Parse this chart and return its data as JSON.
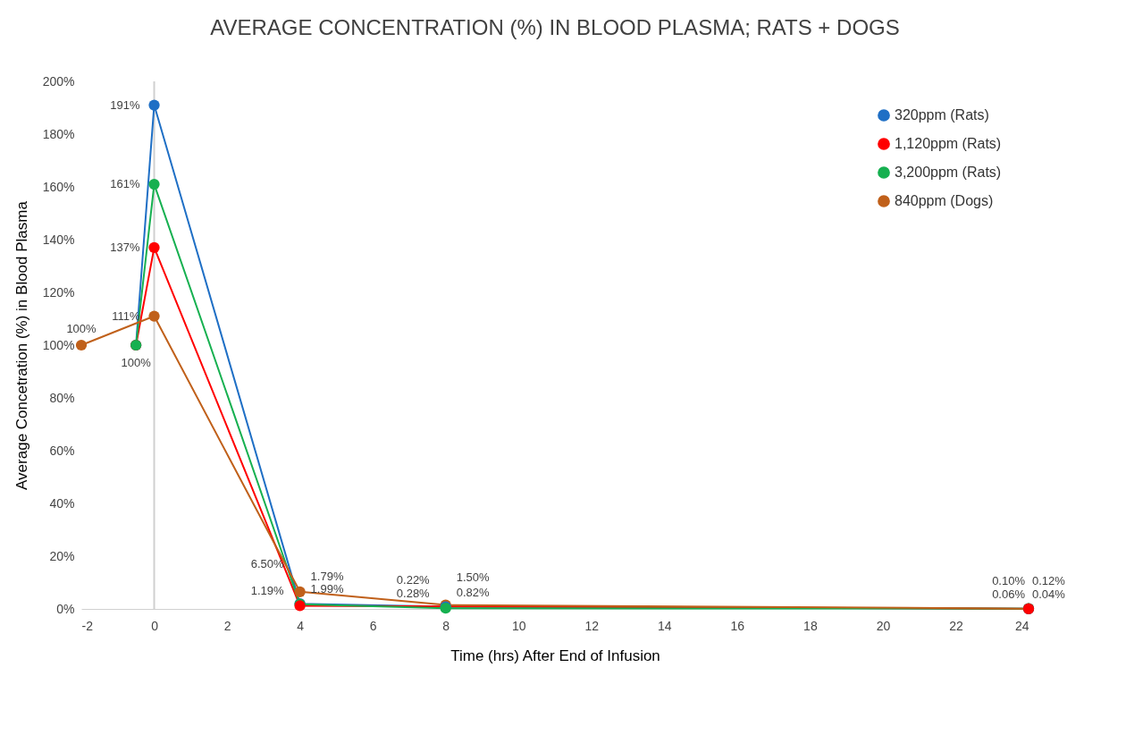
{
  "chart_data": {
    "type": "line",
    "title": "AVERAGE CONCENTRATION (%) IN BLOOD PLASMA; RATS + DOGS",
    "xlabel": "Time (hrs) After End of Infusion",
    "ylabel": "Average Concetration (%) in Blood Plasma",
    "xlim": [
      -2,
      24
    ],
    "xticks": [
      -2,
      0,
      2,
      4,
      6,
      8,
      10,
      12,
      14,
      16,
      18,
      20,
      22,
      24
    ],
    "ylim": [
      0,
      200
    ],
    "yticks": [
      {
        "value": 0,
        "label": "0%"
      },
      {
        "value": 20,
        "label": "20%"
      },
      {
        "value": 40,
        "label": "40%"
      },
      {
        "value": 60,
        "label": "60%"
      },
      {
        "value": 80,
        "label": "80%"
      },
      {
        "value": 100,
        "label": "100%"
      },
      {
        "value": 120,
        "label": "120%"
      },
      {
        "value": 140,
        "label": "140%"
      },
      {
        "value": 160,
        "label": "160%"
      },
      {
        "value": 180,
        "label": "180%"
      },
      {
        "value": 200,
        "label": "200%"
      }
    ],
    "grid": false,
    "legend": "top right",
    "marker": "circle",
    "line_style": "solid",
    "ref_lines": [
      {
        "axis": "x",
        "value": 0,
        "color": "#d0d0d0"
      }
    ],
    "annotations": [
      {
        "text": "0.22%",
        "x": 8,
        "y": 0.22
      }
    ],
    "series": [
      {
        "name": "320ppm (Rats)",
        "color": "#1f6fc5",
        "x": [
          -0.5,
          0,
          4,
          8,
          24
        ],
        "values": [
          100,
          191,
          1.99,
          0.82,
          0.06
        ],
        "value_labels": [
          null,
          "191%",
          "1.99%",
          "0.82%",
          "0.06%"
        ]
      },
      {
        "name": "1,120ppm (Rats)",
        "color": "#ff0000",
        "x": [
          -0.5,
          0,
          4,
          24
        ],
        "values": [
          100,
          137,
          1.19,
          0.04
        ],
        "value_labels": [
          null,
          "137%",
          "1.19%",
          "0.04%"
        ]
      },
      {
        "name": "3,200ppm (Rats)",
        "color": "#16b050",
        "x": [
          -0.5,
          0,
          4,
          8,
          24
        ],
        "values": [
          100,
          161,
          1.79,
          0.28,
          0.1
        ],
        "value_labels": [
          "100%",
          "161%",
          "1.79%",
          "0.28%",
          "0.10%"
        ]
      },
      {
        "name": "840ppm (Dogs)",
        "color": "#c0601a",
        "x": [
          -2,
          0,
          4,
          8,
          24
        ],
        "values": [
          100,
          111,
          6.5,
          1.5,
          0.12
        ],
        "value_labels": [
          "100%",
          "111%",
          "6.50%",
          "1.50%",
          "0.12%"
        ]
      }
    ]
  }
}
